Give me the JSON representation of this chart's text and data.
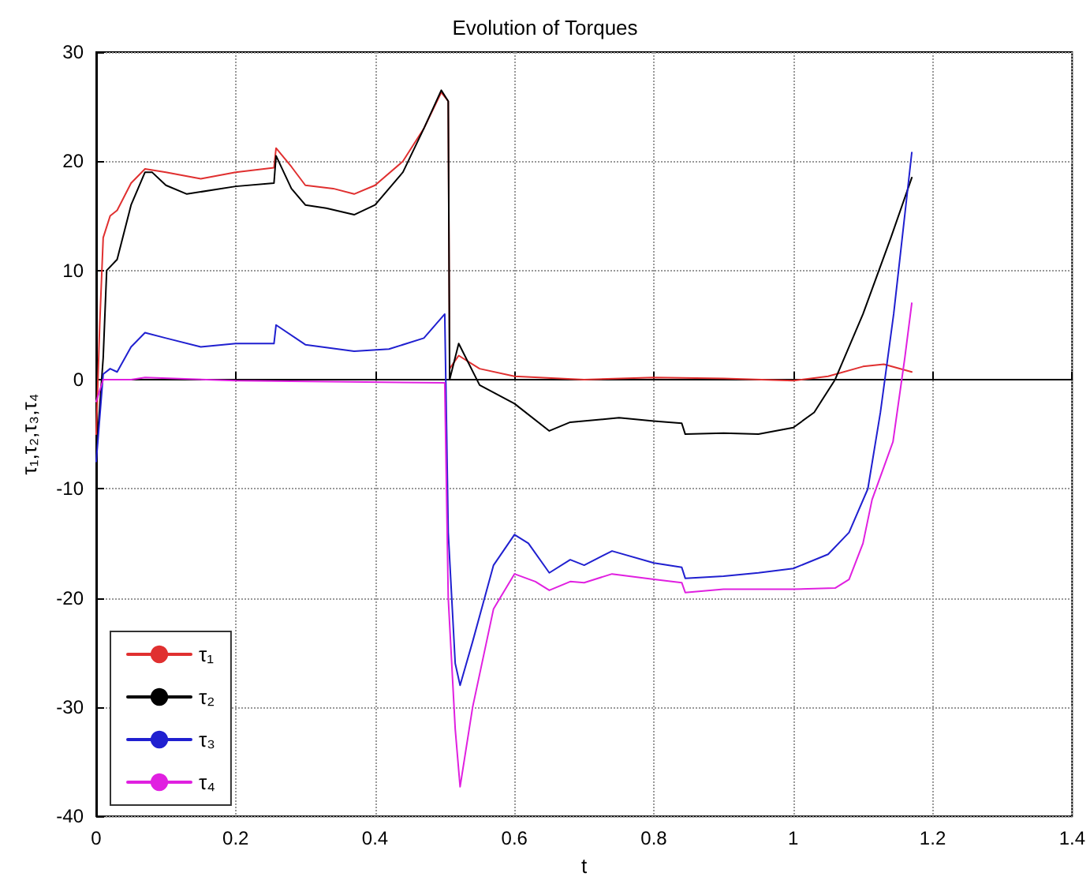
{
  "chart_data": {
    "type": "line",
    "title": "Evolution of Torques",
    "xlabel": "t",
    "ylabel": "τ₁,τ₂,τ₃,τ₄",
    "xlim": [
      0,
      1.4
    ],
    "xticks": [
      0,
      0.2,
      0.4,
      0.6,
      0.8,
      1,
      1.2,
      1.4
    ],
    "ylim": [
      -40,
      30
    ],
    "yticks": [
      -40,
      -30,
      -20,
      -10,
      0,
      10,
      20,
      30
    ],
    "grid": true,
    "legend": "bottom left",
    "marker": "none",
    "line_style": "solid",
    "series": [
      {
        "name": "τ₁",
        "color": "#e03030",
        "x": [
          0,
          0.005,
          0.01,
          0.02,
          0.03,
          0.05,
          0.07,
          0.1,
          0.15,
          0.2,
          0.255,
          0.258,
          0.28,
          0.3,
          0.34,
          0.37,
          0.4,
          0.44,
          0.47,
          0.495,
          0.505,
          0.507,
          0.52,
          0.55,
          0.6,
          0.7,
          0.8,
          0.9,
          1.0,
          1.05,
          1.1,
          1.13,
          1.17
        ],
        "values": [
          -5,
          5,
          13,
          15,
          15.5,
          18,
          19.3,
          19,
          18.4,
          19,
          19.4,
          21.2,
          19.5,
          17.8,
          17.5,
          17,
          17.8,
          20,
          23,
          26.3,
          25.5,
          1,
          2.2,
          1,
          0.3,
          0,
          0.2,
          0.1,
          -0.1,
          0.3,
          1.2,
          1.4,
          0.7
        ]
      },
      {
        "name": "τ₂",
        "color": "#000000",
        "x": [
          0,
          0.01,
          0.015,
          0.03,
          0.05,
          0.07,
          0.08,
          0.1,
          0.13,
          0.2,
          0.255,
          0.258,
          0.28,
          0.3,
          0.33,
          0.37,
          0.4,
          0.44,
          0.47,
          0.495,
          0.505,
          0.507,
          0.52,
          0.55,
          0.6,
          0.65,
          0.68,
          0.75,
          0.8,
          0.84,
          0.845,
          0.9,
          0.95,
          1.0,
          1.03,
          1.06,
          1.1,
          1.14,
          1.17
        ],
        "values": [
          -7,
          2,
          10,
          11,
          16,
          19,
          19,
          17.8,
          17,
          17.7,
          18,
          20.5,
          17.5,
          16,
          15.7,
          15.1,
          16,
          19,
          23,
          26.5,
          25.5,
          0,
          3.3,
          -0.5,
          -2.2,
          -4.7,
          -3.9,
          -3.5,
          -3.8,
          -4,
          -5,
          -4.9,
          -5,
          -4.4,
          -3,
          0,
          6,
          13,
          18.5
        ]
      },
      {
        "name": "τ₃",
        "color": "#2020d0",
        "x": [
          0,
          0.01,
          0.02,
          0.03,
          0.05,
          0.07,
          0.1,
          0.15,
          0.2,
          0.255,
          0.258,
          0.3,
          0.37,
          0.42,
          0.47,
          0.5,
          0.505,
          0.515,
          0.522,
          0.54,
          0.57,
          0.6,
          0.62,
          0.65,
          0.68,
          0.7,
          0.74,
          0.8,
          0.84,
          0.845,
          0.9,
          0.95,
          1.0,
          1.05,
          1.08,
          1.107,
          1.125,
          1.144,
          1.17
        ],
        "values": [
          -7.5,
          0.5,
          1,
          0.7,
          3,
          4.3,
          3.8,
          3,
          3.3,
          3.3,
          5,
          3.2,
          2.6,
          2.8,
          3.8,
          6,
          -14,
          -26,
          -28,
          -24,
          -17,
          -14.2,
          -15,
          -17.7,
          -16.5,
          -17,
          -15.7,
          -16.8,
          -17.2,
          -18.2,
          -18,
          -17.7,
          -17.3,
          -16,
          -14,
          -10,
          -3,
          6,
          20.8
        ]
      },
      {
        "name": "τ₄",
        "color": "#e020e0",
        "x": [
          0,
          0.01,
          0.05,
          0.07,
          0.2,
          0.5,
          0.505,
          0.515,
          0.522,
          0.54,
          0.57,
          0.6,
          0.63,
          0.65,
          0.68,
          0.7,
          0.74,
          0.8,
          0.84,
          0.845,
          0.9,
          1.0,
          1.06,
          1.08,
          1.1,
          1.113,
          1.13,
          1.143,
          1.16,
          1.17
        ],
        "values": [
          -2,
          0,
          0,
          0.2,
          -0.1,
          -0.3,
          -20,
          -32,
          -37.3,
          -30,
          -21,
          -17.8,
          -18.5,
          -19.3,
          -18.5,
          -18.6,
          -17.8,
          -18.3,
          -18.6,
          -19.5,
          -19.2,
          -19.2,
          -19.1,
          -18.3,
          -15,
          -11,
          -8,
          -5.7,
          2,
          7
        ]
      }
    ]
  }
}
